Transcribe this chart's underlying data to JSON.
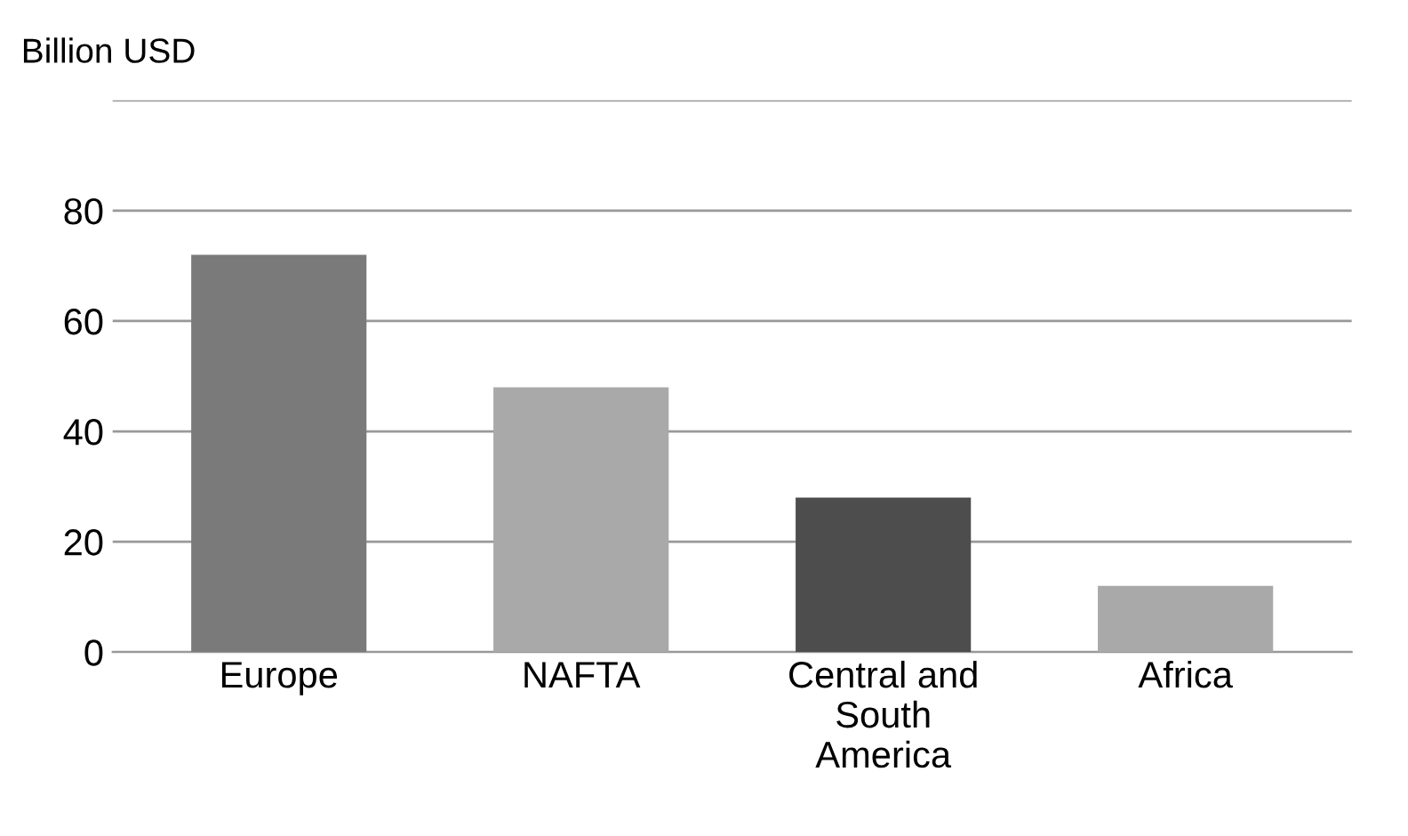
{
  "chart_data": {
    "type": "bar",
    "ylabel": "Billion USD",
    "categories": [
      "Europe",
      "NAFTA",
      "Central and\nSouth\nAmerica",
      "Africa"
    ],
    "values": [
      72,
      48,
      28,
      12
    ],
    "colors": [
      "#7a7a7a",
      "#a9a9a9",
      "#4d4d4d",
      "#a9a9a9"
    ],
    "ylim": [
      0,
      100
    ],
    "yticks": [
      0,
      20,
      40,
      60,
      80,
      {
        "value": 100,
        "label": null
      }
    ],
    "grid": "y",
    "legend": false
  }
}
